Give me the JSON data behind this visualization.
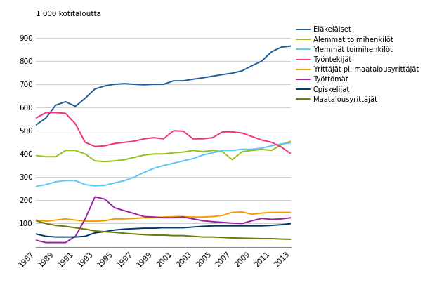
{
  "years": [
    1987,
    1988,
    1989,
    1990,
    1991,
    1992,
    1993,
    1994,
    1995,
    1996,
    1997,
    1998,
    1999,
    2000,
    2001,
    2002,
    2003,
    2004,
    2005,
    2006,
    2007,
    2008,
    2009,
    2010,
    2011,
    2012,
    2013
  ],
  "series": {
    "Eläkeläiset": {
      "color": "#1f5c99",
      "values": [
        525,
        555,
        610,
        625,
        605,
        640,
        680,
        693,
        700,
        703,
        700,
        698,
        700,
        700,
        715,
        715,
        722,
        728,
        735,
        742,
        748,
        758,
        780,
        800,
        840,
        860,
        865
      ]
    },
    "Alemmat toimihenkilöt": {
      "color": "#92c01f",
      "values": [
        393,
        388,
        388,
        415,
        415,
        400,
        370,
        367,
        370,
        375,
        385,
        395,
        400,
        400,
        405,
        408,
        415,
        410,
        415,
        410,
        375,
        410,
        415,
        420,
        415,
        440,
        455
      ]
    },
    "Ylemmät toimihenkilöt": {
      "color": "#5bc8f5",
      "values": [
        260,
        268,
        280,
        285,
        285,
        268,
        262,
        265,
        275,
        285,
        300,
        320,
        338,
        350,
        360,
        370,
        380,
        395,
        405,
        415,
        415,
        420,
        420,
        425,
        435,
        443,
        448
      ]
    },
    "Työntekijät": {
      "color": "#f5317f",
      "values": [
        555,
        578,
        578,
        575,
        530,
        450,
        432,
        435,
        445,
        450,
        455,
        465,
        470,
        465,
        500,
        498,
        465,
        465,
        470,
        495,
        495,
        490,
        475,
        460,
        450,
        430,
        400
      ]
    },
    "Yrittäjät pl. maatalousyrittäjät": {
      "color": "#f59c00",
      "values": [
        115,
        110,
        115,
        120,
        115,
        110,
        110,
        112,
        120,
        120,
        122,
        125,
        125,
        128,
        130,
        130,
        128,
        128,
        130,
        135,
        148,
        150,
        140,
        145,
        148,
        148,
        148
      ]
    },
    "Työttömät": {
      "color": "#9b1fa0",
      "values": [
        28,
        18,
        18,
        18,
        45,
        120,
        215,
        205,
        168,
        155,
        143,
        130,
        128,
        125,
        125,
        128,
        120,
        112,
        108,
        105,
        102,
        100,
        112,
        122,
        118,
        120,
        125
      ]
    },
    "Opiskelijat": {
      "color": "#003865",
      "values": [
        55,
        45,
        42,
        42,
        42,
        45,
        60,
        65,
        72,
        76,
        78,
        80,
        80,
        82,
        82,
        82,
        85,
        88,
        90,
        90,
        90,
        90,
        90,
        90,
        92,
        95,
        100
      ]
    },
    "Maatalousyrittäjät": {
      "color": "#6b7a00",
      "values": [
        112,
        100,
        92,
        88,
        82,
        76,
        68,
        65,
        62,
        58,
        55,
        52,
        50,
        50,
        48,
        48,
        45,
        42,
        42,
        40,
        38,
        37,
        36,
        35,
        35,
        33,
        32
      ]
    }
  },
  "ylabel": "1 000 kotitaloutta",
  "ylim": [
    0,
    950
  ],
  "yticks": [
    0,
    100,
    200,
    300,
    400,
    500,
    600,
    700,
    800,
    900
  ],
  "xtick_years": [
    1987,
    1989,
    1991,
    1993,
    1995,
    1997,
    1999,
    2001,
    2003,
    2005,
    2007,
    2009,
    2011,
    2013
  ],
  "background_color": "#ffffff",
  "grid_color": "#c8c8c8",
  "linewidth": 1.4
}
